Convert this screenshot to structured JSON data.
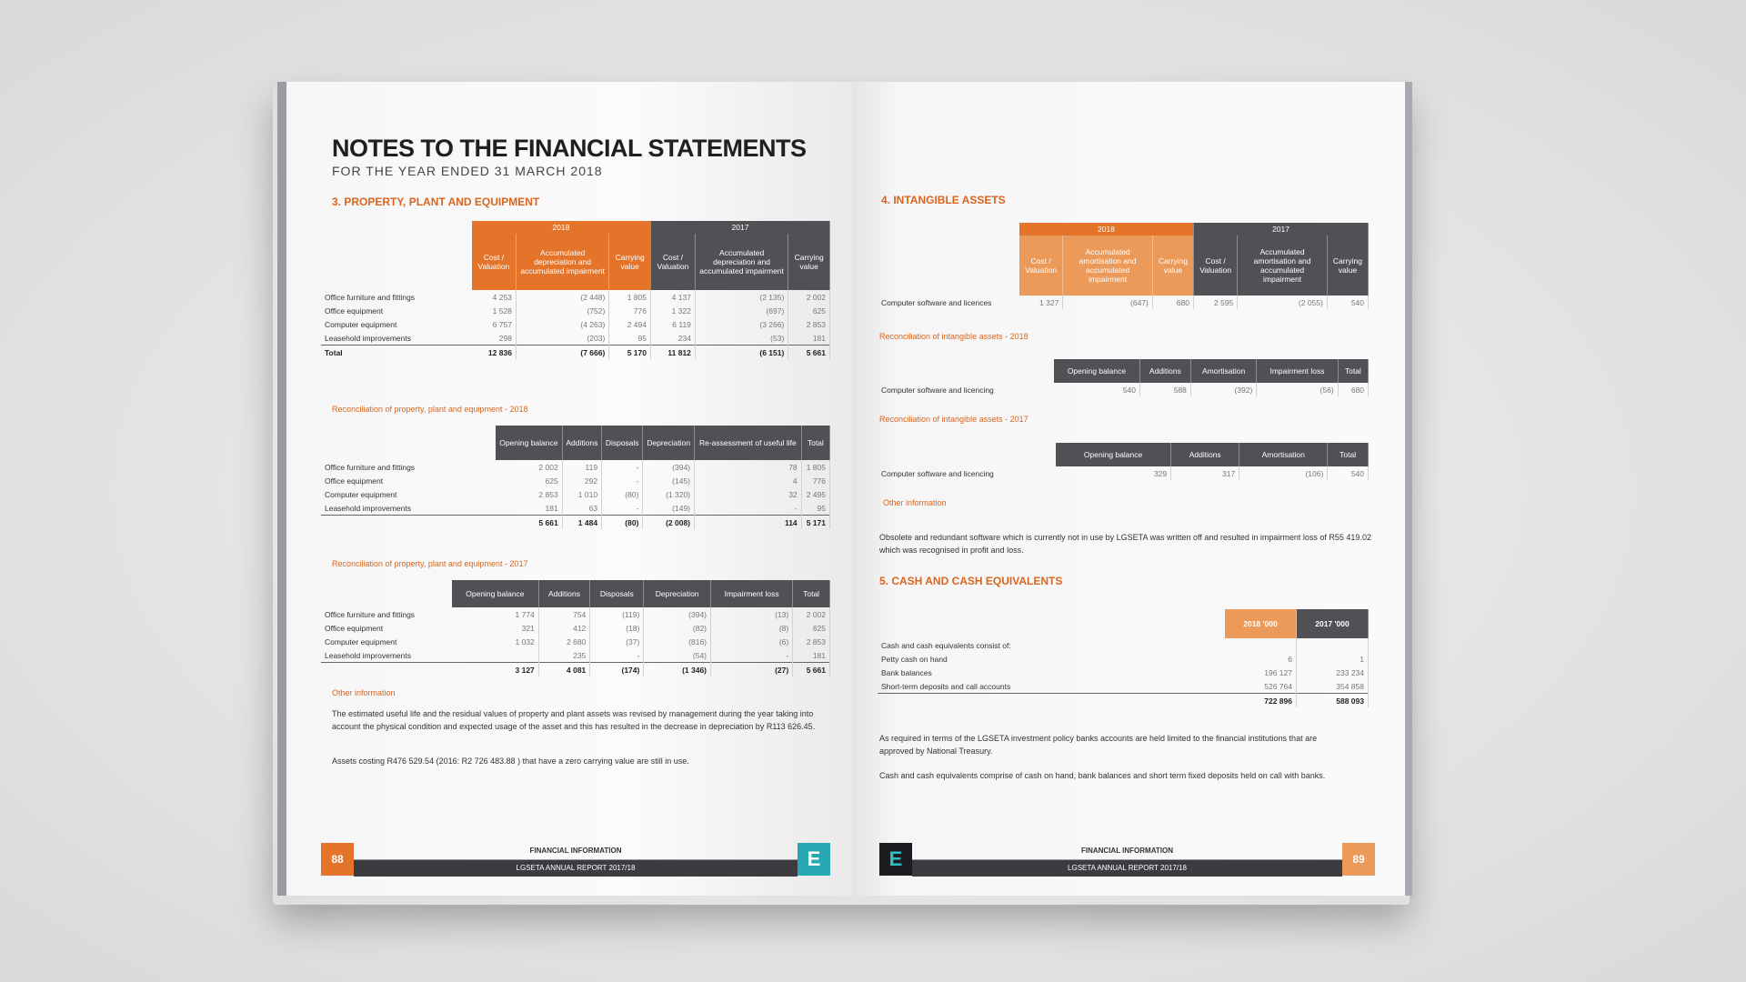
{
  "left_page": {
    "title": "NOTES TO THE FINANCIAL STATEMENTS",
    "subtitle": "FOR THE YEAR ENDED 31 MARCH 2018",
    "section3_heading": "3. PROPERTY, PLANT AND EQUIPMENT",
    "ppe_table": {
      "group_2018": "2018",
      "group_2017": "2017",
      "cols": [
        "Cost / Valuation",
        "Accumulated depreciation and accumulated impairment",
        "Carrying value",
        "Cost / Valuation",
        "Accumulated depreciation and accumulated impairment",
        "Carrying value"
      ],
      "rows": [
        {
          "name": "Office furniture and fittings",
          "v": [
            "4 253",
            "(2 448)",
            "1 805",
            "4 137",
            "(2 135)",
            "2 002"
          ]
        },
        {
          "name": "Office equipment",
          "v": [
            "1 528",
            "(752)",
            "776",
            "1 322",
            "(697)",
            "625"
          ]
        },
        {
          "name": "Computer equipment",
          "v": [
            "6 757",
            "(4 263)",
            "2 494",
            "6 119",
            "(3 266)",
            "2 853"
          ]
        },
        {
          "name": "Leasehold improvements",
          "v": [
            "298",
            "(203)",
            "95",
            "234",
            "(53)",
            "181"
          ]
        },
        {
          "name": "Total",
          "v": [
            "12 836",
            "(7 666)",
            "5 170",
            "11 812",
            "(6 151)",
            "5 661"
          ]
        }
      ]
    },
    "recon2018": {
      "heading": "Reconciliation of property, plant and equipment - 2018",
      "cols": [
        "Opening balance",
        "Additions",
        "Disposals",
        "Depreciation",
        "Re-assessment of useful life",
        "Total"
      ],
      "rows": [
        {
          "name": "Office furniture and fittings",
          "v": [
            "2 002",
            "119",
            "-",
            "(394)",
            "78",
            "1 805"
          ]
        },
        {
          "name": "Office equipment",
          "v": [
            "625",
            "292",
            "-",
            "(145)",
            "4",
            "776"
          ]
        },
        {
          "name": "Computer equipment",
          "v": [
            "2 853",
            "1 010",
            "(80)",
            "(1 320)",
            "32",
            "2 495"
          ]
        },
        {
          "name": "Leasehold improvements",
          "v": [
            "181",
            "63",
            "-",
            "(149)",
            "-",
            "95"
          ]
        },
        {
          "name": "",
          "v": [
            "5 661",
            "1 484",
            "(80)",
            "(2 008)",
            "114",
            "5 171"
          ]
        }
      ]
    },
    "recon2017": {
      "heading": "Reconciliation of property, plant and equipment - 2017",
      "cols": [
        "Opening balance",
        "Additions",
        "Disposals",
        "Depreciation",
        "Impairment loss",
        "Total"
      ],
      "rows": [
        {
          "name": "Office furniture and fittings",
          "v": [
            "1 774",
            "754",
            "(119)",
            "(394)",
            "(13)",
            "2 002"
          ]
        },
        {
          "name": "Office equipment",
          "v": [
            "321",
            "412",
            "(18)",
            "(82)",
            "(8)",
            "625"
          ]
        },
        {
          "name": "Computer equipment",
          "v": [
            "1 032",
            "2 680",
            "(37)",
            "(816)",
            "(6)",
            "2 853"
          ]
        },
        {
          "name": "Leasehold improvements",
          "v": [
            "",
            "235",
            "-",
            "(54)",
            "-",
            "181"
          ]
        },
        {
          "name": "",
          "v": [
            "3 127",
            "4 081",
            "(174)",
            "(1 346)",
            "(27)",
            "5 661"
          ]
        }
      ]
    },
    "other_info_heading": "Other information",
    "other_info_p1": "The estimated useful life and the residual values of property and plant assets was revised by management during the year taking into account the physical condition and expected usage of the asset and this has resulted in the decrease in depreciation by R113 626.45.",
    "other_info_p2": "Assets costing R476 529.54 (2016: R2 726 483.88 ) that have a zero carrying value are still in use.",
    "footer": {
      "page": "88",
      "line1": "FINANCIAL INFORMATION",
      "line2": "LGSETA ANNUAL REPORT 2017/18",
      "letter": "E"
    }
  },
  "right_page": {
    "section4_heading": "4. INTANGIBLE ASSETS",
    "intangible_table": {
      "group_2018": "2018",
      "group_2017": "2017",
      "cols": [
        "Cost / Valuation",
        "Accumulated amortisation and accumulated impairment",
        "Carrying value",
        "Cost / Valuation",
        "Accumulated amortisation and accumulated impairment",
        "Carrying value"
      ],
      "rows": [
        {
          "name": "Computer software and licences",
          "v": [
            "1 327",
            "(647)",
            "680",
            "2 595",
            "(2 055)",
            "540"
          ]
        }
      ]
    },
    "recon2018": {
      "heading": "Reconciliation of intangible assets - 2018",
      "cols": [
        "Opening balance",
        "Additions",
        "Amortisation",
        "Impairment loss",
        "Total"
      ],
      "rows": [
        {
          "name": "Computer software and licencing",
          "v": [
            "540",
            "588",
            "(392)",
            "(56)",
            "680"
          ]
        }
      ]
    },
    "recon2017": {
      "heading": "Reconciliation of intangible assets - 2017",
      "cols": [
        "Opening balance",
        "Additions",
        "Amortisation",
        "Total"
      ],
      "rows": [
        {
          "name": "Computer software and licencing",
          "v": [
            "329",
            "317",
            "(106)",
            "540"
          ]
        }
      ]
    },
    "other_info_heading": "Other information",
    "other_info_p": "Obsolete and redundant software which is currently not in use by LGSETA was written off and resulted in impairment loss of R55 419.02 which was recognised in profit and loss.",
    "section5_heading": "5. CASH AND CASH EQUIVALENTS",
    "cash_table": {
      "cols": [
        "2018 '000",
        "2017 '000"
      ],
      "rows": [
        {
          "name": "Cash and cash equivalents consist of:",
          "v": [
            "",
            ""
          ]
        },
        {
          "name": "Petty cash on hand",
          "v": [
            "6",
            "1"
          ]
        },
        {
          "name": "Bank balances",
          "v": [
            "196 127",
            "233 234"
          ]
        },
        {
          "name": "Short-term deposits and call accounts",
          "v": [
            "526 764",
            "354 858"
          ]
        },
        {
          "name": "",
          "v": [
            "722 896",
            "588 093"
          ]
        }
      ]
    },
    "cash_p1": "As required in terms of the LGSETA investment policy banks accounts are held limited to the financial institutions that are approved by National Treasury.",
    "cash_p2": "Cash and cash equivalents comprise of cash on hand, bank balances and short term fixed deposits held on call with banks.",
    "footer": {
      "page": "89",
      "line1": "FINANCIAL INFORMATION",
      "line2": "LGSETA ANNUAL REPORT 2017/18",
      "letter": "E"
    }
  }
}
